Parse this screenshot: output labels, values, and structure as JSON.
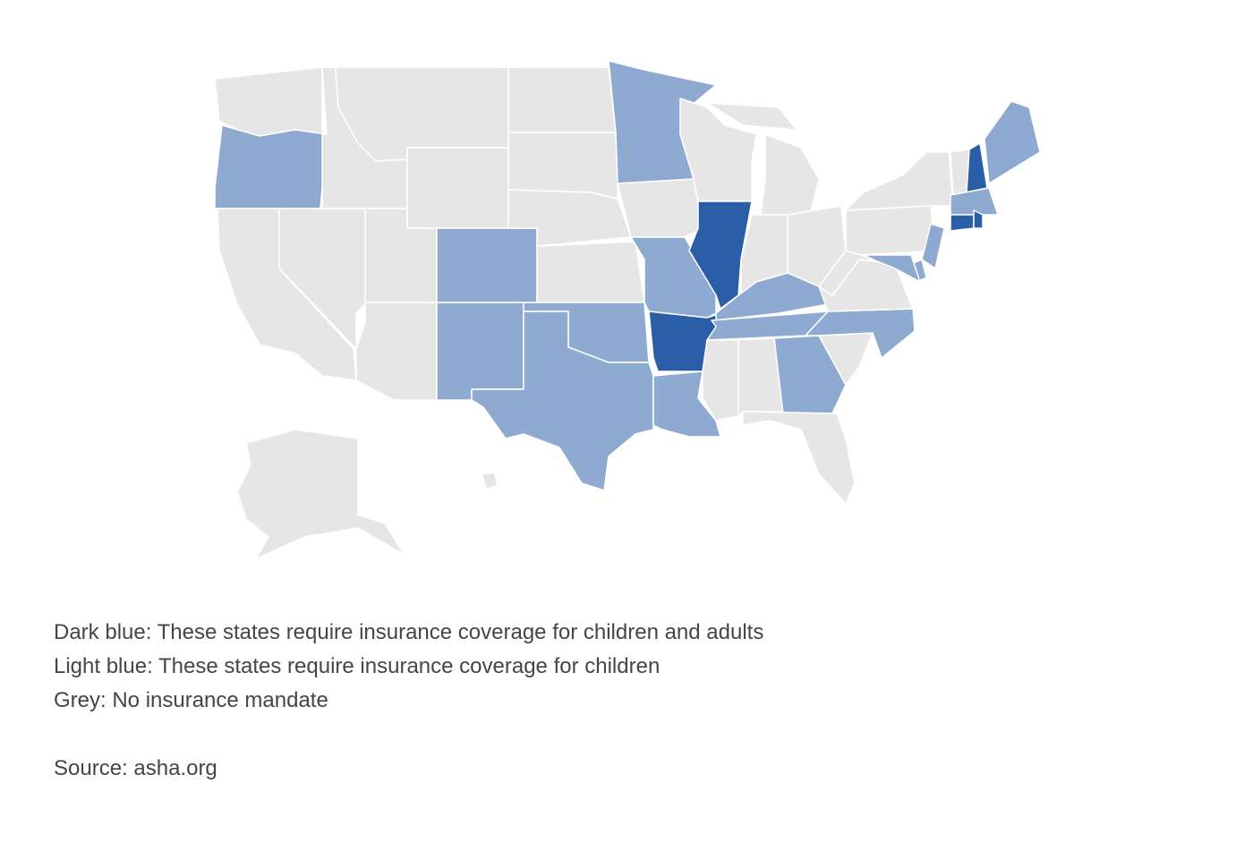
{
  "map": {
    "legend": [
      {
        "label": "Dark blue: These states require insurance coverage for children and adults",
        "color": "#2a5ea6"
      },
      {
        "label": "Light blue: These states require insurance coverage for children",
        "color": "#8faad0"
      },
      {
        "label": "Grey: No insurance mandate",
        "color": "#e6e6e6"
      }
    ],
    "states": {
      "WA": 2,
      "OR": 1,
      "CA": 2,
      "NV": 2,
      "ID": 2,
      "MT": 2,
      "WY": 2,
      "UT": 2,
      "AZ": 2,
      "CO": 1,
      "NM": 1,
      "ND": 2,
      "SD": 2,
      "NE": 2,
      "KS": 2,
      "OK": 1,
      "TX": 1,
      "MN": 1,
      "IA": 2,
      "MO": 1,
      "AR": 0,
      "LA": 1,
      "WI": 2,
      "IL": 0,
      "MI": 2,
      "MIU": 2,
      "IN": 2,
      "OH": 2,
      "KY": 1,
      "TN": 1,
      "MS": 2,
      "AL": 2,
      "GA": 1,
      "FL": 2,
      "SC": 2,
      "NC": 1,
      "VA": 2,
      "WV": 2,
      "PA": 2,
      "NY": 2,
      "NJ": 1,
      "DE": 1,
      "MD": 1,
      "VT": 2,
      "NH": 0,
      "ME": 1,
      "MA": 1,
      "CT": 0,
      "RI": 0,
      "AK": 2,
      "HI": 2
    }
  },
  "source": "Source: asha.org"
}
